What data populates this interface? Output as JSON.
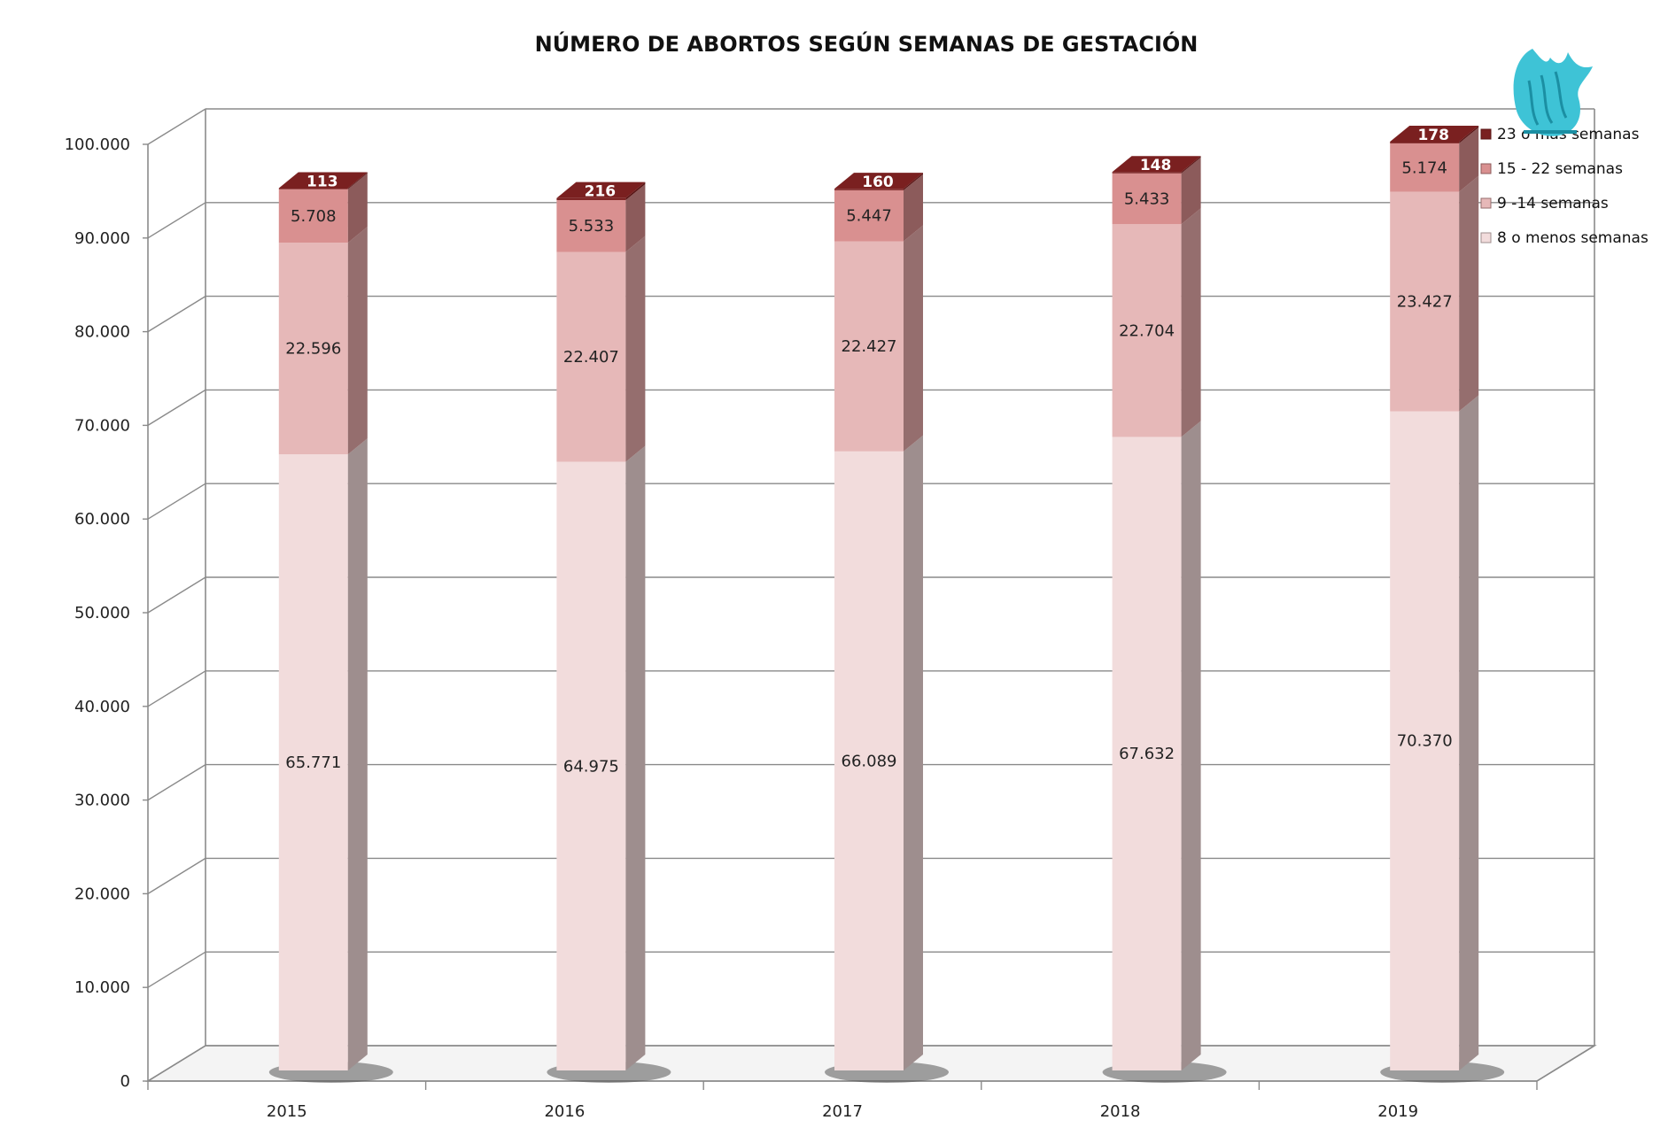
{
  "chart_data": {
    "type": "bar",
    "stacked": true,
    "three_d": true,
    "title": "NÚMERO DE ABORTOS SEGÚN SEMANAS DE GESTACIÓN",
    "xlabel": "",
    "ylabel": "",
    "ylim": [
      0,
      100000
    ],
    "y_ticks": [
      "0",
      "10.000",
      "20.000",
      "30.000",
      "40.000",
      "50.000",
      "60.000",
      "70.000",
      "80.000",
      "90.000",
      "100.000"
    ],
    "y_tick_values": [
      0,
      10000,
      20000,
      30000,
      40000,
      50000,
      60000,
      70000,
      80000,
      90000,
      100000
    ],
    "categories": [
      "2015",
      "2016",
      "2017",
      "2018",
      "2019"
    ],
    "series": [
      {
        "name": "8 o menos semanas",
        "values": [
          65771,
          64975,
          66089,
          67632,
          70370
        ],
        "labels": [
          "65.771",
          "64.975",
          "66.089",
          "67.632",
          "70.370"
        ],
        "color": "#f2dcdc",
        "side_color": "#9e8e8e"
      },
      {
        "name": "9 -14 semanas",
        "values": [
          22596,
          22407,
          22427,
          22704,
          23427
        ],
        "labels": [
          "22.596",
          "22.407",
          "22.427",
          "22.704",
          "23.427"
        ],
        "color": "#e6b8b8",
        "side_color": "#956e6e"
      },
      {
        "name": "15 - 22 semanas",
        "values": [
          5708,
          5533,
          5447,
          5433,
          5174
        ],
        "labels": [
          "5.708",
          "5.533",
          "5.447",
          "5.433",
          "5.174"
        ],
        "color": "#d99090",
        "side_color": "#8c5b5b"
      },
      {
        "name": "23 o más semanas",
        "values": [
          113,
          216,
          160,
          148,
          178
        ],
        "labels": [
          "113",
          "216",
          "160",
          "148",
          "178"
        ],
        "color": "#7a2020",
        "side_color": "#5a1515"
      }
    ],
    "legend": {
      "placement": "top-right",
      "order": [
        "23 o más semanas",
        "15 - 22 semanas",
        "9 -14 semanas",
        "8 o menos semanas"
      ]
    },
    "grid": true
  },
  "logo_name": "institutional-eagle-logo"
}
